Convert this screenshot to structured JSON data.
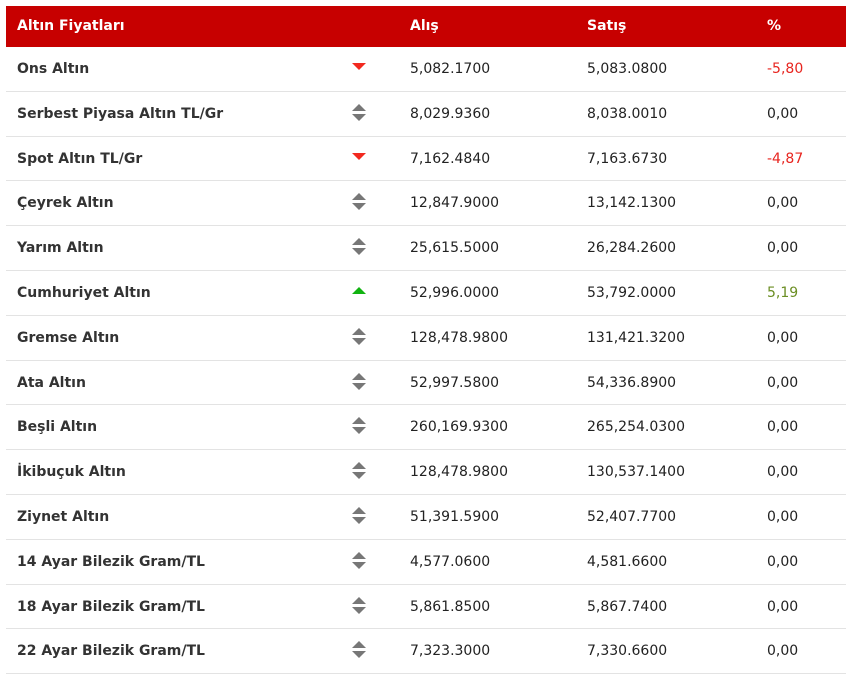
{
  "header": {
    "name": "Altın Fiyatları",
    "buy": "Alış",
    "sell": "Satış",
    "pct": "%"
  },
  "colors": {
    "header_bg": "#c70000",
    "down": "#e8251f",
    "up": "#6b8e23"
  },
  "rows": [
    {
      "name": "Ons Altın",
      "trend": "down",
      "buy": "5,082.1700",
      "sell": "5,083.0800",
      "pct": "-5,80"
    },
    {
      "name": "Serbest Piyasa Altın TL/Gr",
      "trend": "flat",
      "buy": "8,029.9360",
      "sell": "8,038.0010",
      "pct": "0,00"
    },
    {
      "name": "Spot Altın TL/Gr",
      "trend": "down",
      "buy": "7,162.4840",
      "sell": "7,163.6730",
      "pct": "-4,87"
    },
    {
      "name": "Çeyrek Altın",
      "trend": "flat",
      "buy": "12,847.9000",
      "sell": "13,142.1300",
      "pct": "0,00"
    },
    {
      "name": "Yarım Altın",
      "trend": "flat",
      "buy": "25,615.5000",
      "sell": "26,284.2600",
      "pct": "0,00"
    },
    {
      "name": "Cumhuriyet Altın",
      "trend": "up",
      "buy": "52,996.0000",
      "sell": "53,792.0000",
      "pct": "5,19"
    },
    {
      "name": "Gremse Altın",
      "trend": "flat",
      "buy": "128,478.9800",
      "sell": "131,421.3200",
      "pct": "0,00"
    },
    {
      "name": "Ata Altın",
      "trend": "flat",
      "buy": "52,997.5800",
      "sell": "54,336.8900",
      "pct": "0,00"
    },
    {
      "name": "Beşli Altın",
      "trend": "flat",
      "buy": "260,169.9300",
      "sell": "265,254.0300",
      "pct": "0,00"
    },
    {
      "name": "İkibuçuk Altın",
      "trend": "flat",
      "buy": "128,478.9800",
      "sell": "130,537.1400",
      "pct": "0,00"
    },
    {
      "name": "Ziynet Altın",
      "trend": "flat",
      "buy": "51,391.5900",
      "sell": "52,407.7700",
      "pct": "0,00"
    },
    {
      "name": "14 Ayar Bilezik Gram/TL",
      "trend": "flat",
      "buy": "4,577.0600",
      "sell": "4,581.6600",
      "pct": "0,00"
    },
    {
      "name": "18 Ayar Bilezik Gram/TL",
      "trend": "flat",
      "buy": "5,861.8500",
      "sell": "5,867.7400",
      "pct": "0,00"
    },
    {
      "name": "22 Ayar Bilezik Gram/TL",
      "trend": "flat",
      "buy": "7,323.3000",
      "sell": "7,330.6600",
      "pct": "0,00"
    }
  ]
}
